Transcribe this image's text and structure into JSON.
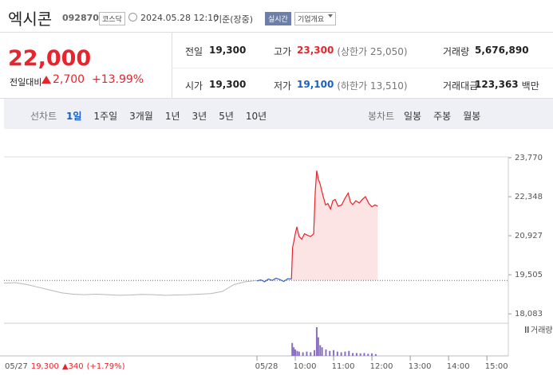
{
  "header": {
    "name": "엑시콘",
    "code": "092870",
    "market": "코스닥",
    "datetime": "2024.05.28 12:10",
    "basis": "기준(장중)",
    "realtime": "실시간",
    "info": "기업개요"
  },
  "quote": {
    "price": "22,000",
    "change_label": "전일대비",
    "change": "2,700",
    "change_pct": "+13.99%"
  },
  "stats": [
    [
      {
        "label": "전일",
        "value": "19,300"
      },
      {
        "label": "고가",
        "value": "23,300",
        "note": "(상한가 25,050)"
      },
      {
        "label": "거래량",
        "value": "5,676,890"
      }
    ],
    [
      {
        "label": "시가",
        "value": "19,300"
      },
      {
        "label": "저가",
        "value": "19,100",
        "note": "(하한가 13,510)"
      },
      {
        "label": "거래대금",
        "value": "123,363",
        "unit": "백만"
      }
    ]
  ],
  "tabs": {
    "line_label": "선차트",
    "line": [
      "1일",
      "1주일",
      "3개월",
      "1년",
      "3년",
      "5년",
      "10년"
    ],
    "candle_label": "봉차트",
    "candle": [
      "일봉",
      "주봉",
      "월봉"
    ]
  },
  "chart_data": {
    "type": "line",
    "ylim": [
      17740,
      23800
    ],
    "yticks": [
      {
        "value": 23770,
        "label": "23,770"
      },
      {
        "value": 22348,
        "label": "22,348"
      },
      {
        "value": 20927,
        "label": "20,927"
      },
      {
        "value": 19505,
        "label": "19,505"
      },
      {
        "value": 18083,
        "label": "18,083"
      }
    ],
    "xlim": [
      9,
      15.6
    ],
    "xticks": [
      {
        "value": 9,
        "label": "05/28"
      },
      {
        "value": 10,
        "label": "10:00"
      },
      {
        "value": 11,
        "label": "11:00"
      },
      {
        "value": 12,
        "label": "12:00"
      },
      {
        "value": 13,
        "label": "13:00"
      },
      {
        "value": 14,
        "label": "14:00"
      },
      {
        "value": 15,
        "label": "15:00"
      }
    ],
    "baseline": 19300,
    "previous": {
      "color": "#b8b8b8",
      "values": [
        19200,
        19220,
        19150,
        19050,
        18950,
        18850,
        18800,
        18780,
        18800,
        18780,
        18760,
        18770,
        18790,
        18780,
        18760,
        18770,
        18780,
        18800,
        18820,
        18900,
        19150,
        19250,
        19300
      ]
    },
    "series": [
      {
        "color": "#3a62c4",
        "x": [
          9.0,
          9.1,
          9.2,
          9.3,
          9.4,
          9.5,
          9.6,
          9.7,
          9.8,
          9.9
        ],
        "values": [
          19280,
          19320,
          19250,
          19350,
          19300,
          19380,
          19330,
          19260,
          19360,
          19350
        ]
      },
      {
        "color": "#e8242c",
        "x": [
          9.9,
          9.93,
          9.96,
          10.0,
          10.04,
          10.1,
          10.17,
          10.24,
          10.31,
          10.4,
          10.48,
          10.52,
          10.56,
          10.6,
          10.65,
          10.72,
          10.79,
          10.85,
          10.92,
          10.98,
          11.04,
          11.12,
          11.21,
          11.3,
          11.38,
          11.44,
          11.5,
          11.58,
          11.67,
          11.75,
          11.83,
          11.92,
          12.0,
          12.08,
          12.15
        ],
        "values": [
          19350,
          20500,
          20700,
          21000,
          21250,
          20900,
          20800,
          21000,
          20950,
          20900,
          21000,
          22500,
          23300,
          23000,
          22800,
          22400,
          22050,
          22100,
          21900,
          22200,
          22250,
          22000,
          22050,
          22300,
          22480,
          22150,
          22060,
          22200,
          22120,
          22250,
          22350,
          22100,
          21980,
          22050,
          22000
        ]
      }
    ],
    "volume": {
      "name": "거래량",
      "color": "#8a6fc1",
      "x": [
        9.92,
        9.96,
        10.0,
        10.05,
        10.1,
        10.2,
        10.3,
        10.4,
        10.5,
        10.56,
        10.6,
        10.65,
        10.7,
        10.8,
        10.9,
        11.0,
        11.1,
        11.2,
        11.3,
        11.4,
        11.5,
        11.6,
        11.7,
        11.8,
        11.9,
        12.0,
        12.1
      ],
      "values": [
        180000,
        120000,
        90000,
        70000,
        60000,
        50000,
        60000,
        50000,
        80000,
        400000,
        260000,
        150000,
        120000,
        90000,
        70000,
        80000,
        60000,
        50000,
        60000,
        70000,
        40000,
        40000,
        35000,
        40000,
        30000,
        35000,
        25000
      ]
    },
    "readout": {
      "date": "05/27",
      "price": "19,300",
      "change": "▲340",
      "pct": "(+1.79%)"
    }
  }
}
